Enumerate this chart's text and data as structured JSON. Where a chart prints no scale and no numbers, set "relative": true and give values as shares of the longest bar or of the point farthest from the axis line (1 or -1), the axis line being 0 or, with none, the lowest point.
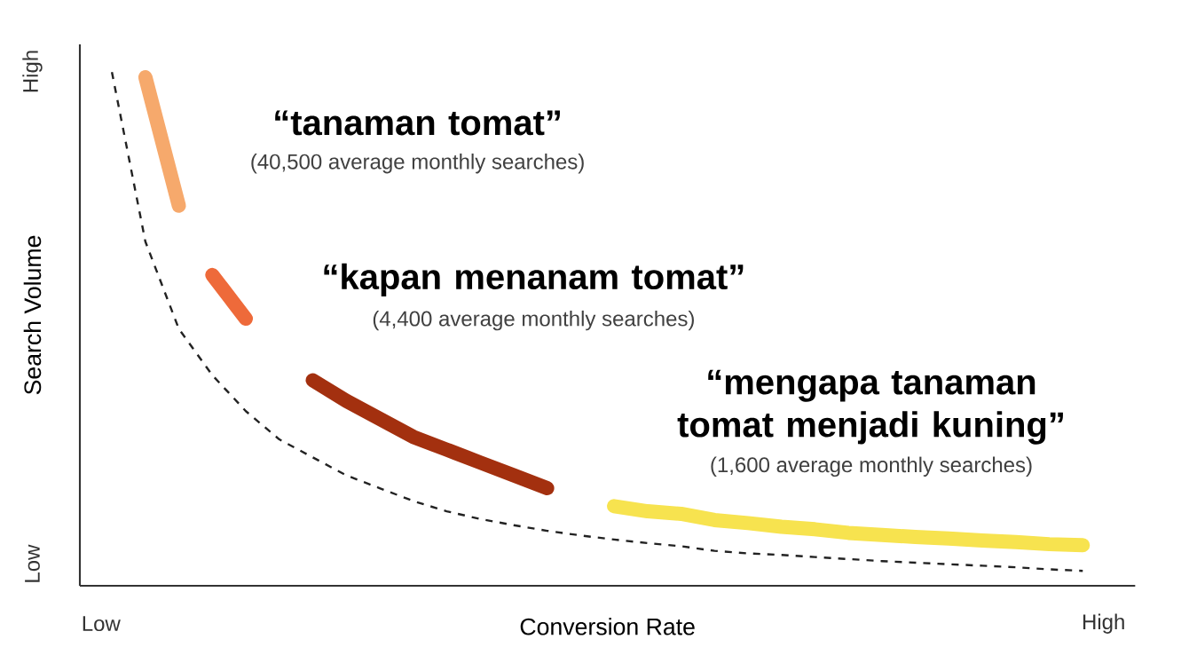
{
  "chart_data": {
    "type": "line",
    "relative": true,
    "xlabel": "Conversion Rate",
    "ylabel": "Search Volume",
    "marker": "none",
    "categories": [
      null,
      null,
      null,
      null,
      null,
      null,
      null,
      null,
      null,
      null,
      null,
      null,
      null,
      null,
      null,
      null,
      null,
      null,
      null,
      null,
      null,
      null,
      null,
      null,
      null,
      null,
      null,
      null,
      null,
      null
    ],
    "series": [
      {
        "color": "#f6a96c",
        "line_style": "solid",
        "values": [
          null,
          0.99,
          0.74,
          null,
          null,
          null,
          null,
          null,
          null,
          null,
          null,
          null,
          null,
          null,
          null,
          null,
          null,
          null,
          null,
          null,
          null,
          null,
          null,
          null,
          null,
          null,
          null,
          null,
          null,
          null
        ]
      },
      {
        "color": "#ee6a3a",
        "line_style": "solid",
        "values": [
          null,
          null,
          null,
          0.605,
          0.52,
          null,
          null,
          null,
          null,
          null,
          null,
          null,
          null,
          null,
          null,
          null,
          null,
          null,
          null,
          null,
          null,
          null,
          null,
          null,
          null,
          null,
          null,
          null,
          null,
          null
        ]
      },
      {
        "color": "#a3300f",
        "line_style": "solid",
        "values": [
          null,
          null,
          null,
          null,
          null,
          null,
          0.4,
          0.36,
          0.325,
          0.29,
          0.265,
          0.24,
          0.215,
          0.19,
          null,
          null,
          null,
          null,
          null,
          null,
          null,
          null,
          null,
          null,
          null,
          null,
          null,
          null,
          null,
          null
        ]
      },
      {
        "color": "#f7e34f",
        "line_style": "solid",
        "values": [
          null,
          null,
          null,
          null,
          null,
          null,
          null,
          null,
          null,
          null,
          null,
          null,
          null,
          null,
          null,
          0.155,
          0.145,
          0.14,
          0.128,
          0.122,
          0.115,
          0.11,
          0.103,
          0.099,
          0.095,
          0.092,
          0.088,
          0.085,
          0.081,
          0.079
        ]
      },
      {
        "color": "#222222",
        "line_style": "dashed",
        "values": [
          1.0,
          0.67,
          0.5,
          0.41,
          0.34,
          0.285,
          0.25,
          0.215,
          0.19,
          0.165,
          0.145,
          0.13,
          0.118,
          0.107,
          0.098,
          0.09,
          0.083,
          0.077,
          0.068,
          0.063,
          0.06,
          0.056,
          0.052,
          0.048,
          0.045,
          0.042,
          0.039,
          0.036,
          0.032,
          0.029
        ]
      }
    ],
    "annotations": [
      "“tanaman tomat”",
      "(40,500 average monthly searches)",
      "“kapan menanam tomat”",
      "(4,400 average monthly searches)",
      "“mengapa tanaman tomat menjadi kuning”",
      "(1,600 average monthly searches)",
      "High",
      "Low",
      "Low",
      "High"
    ]
  }
}
